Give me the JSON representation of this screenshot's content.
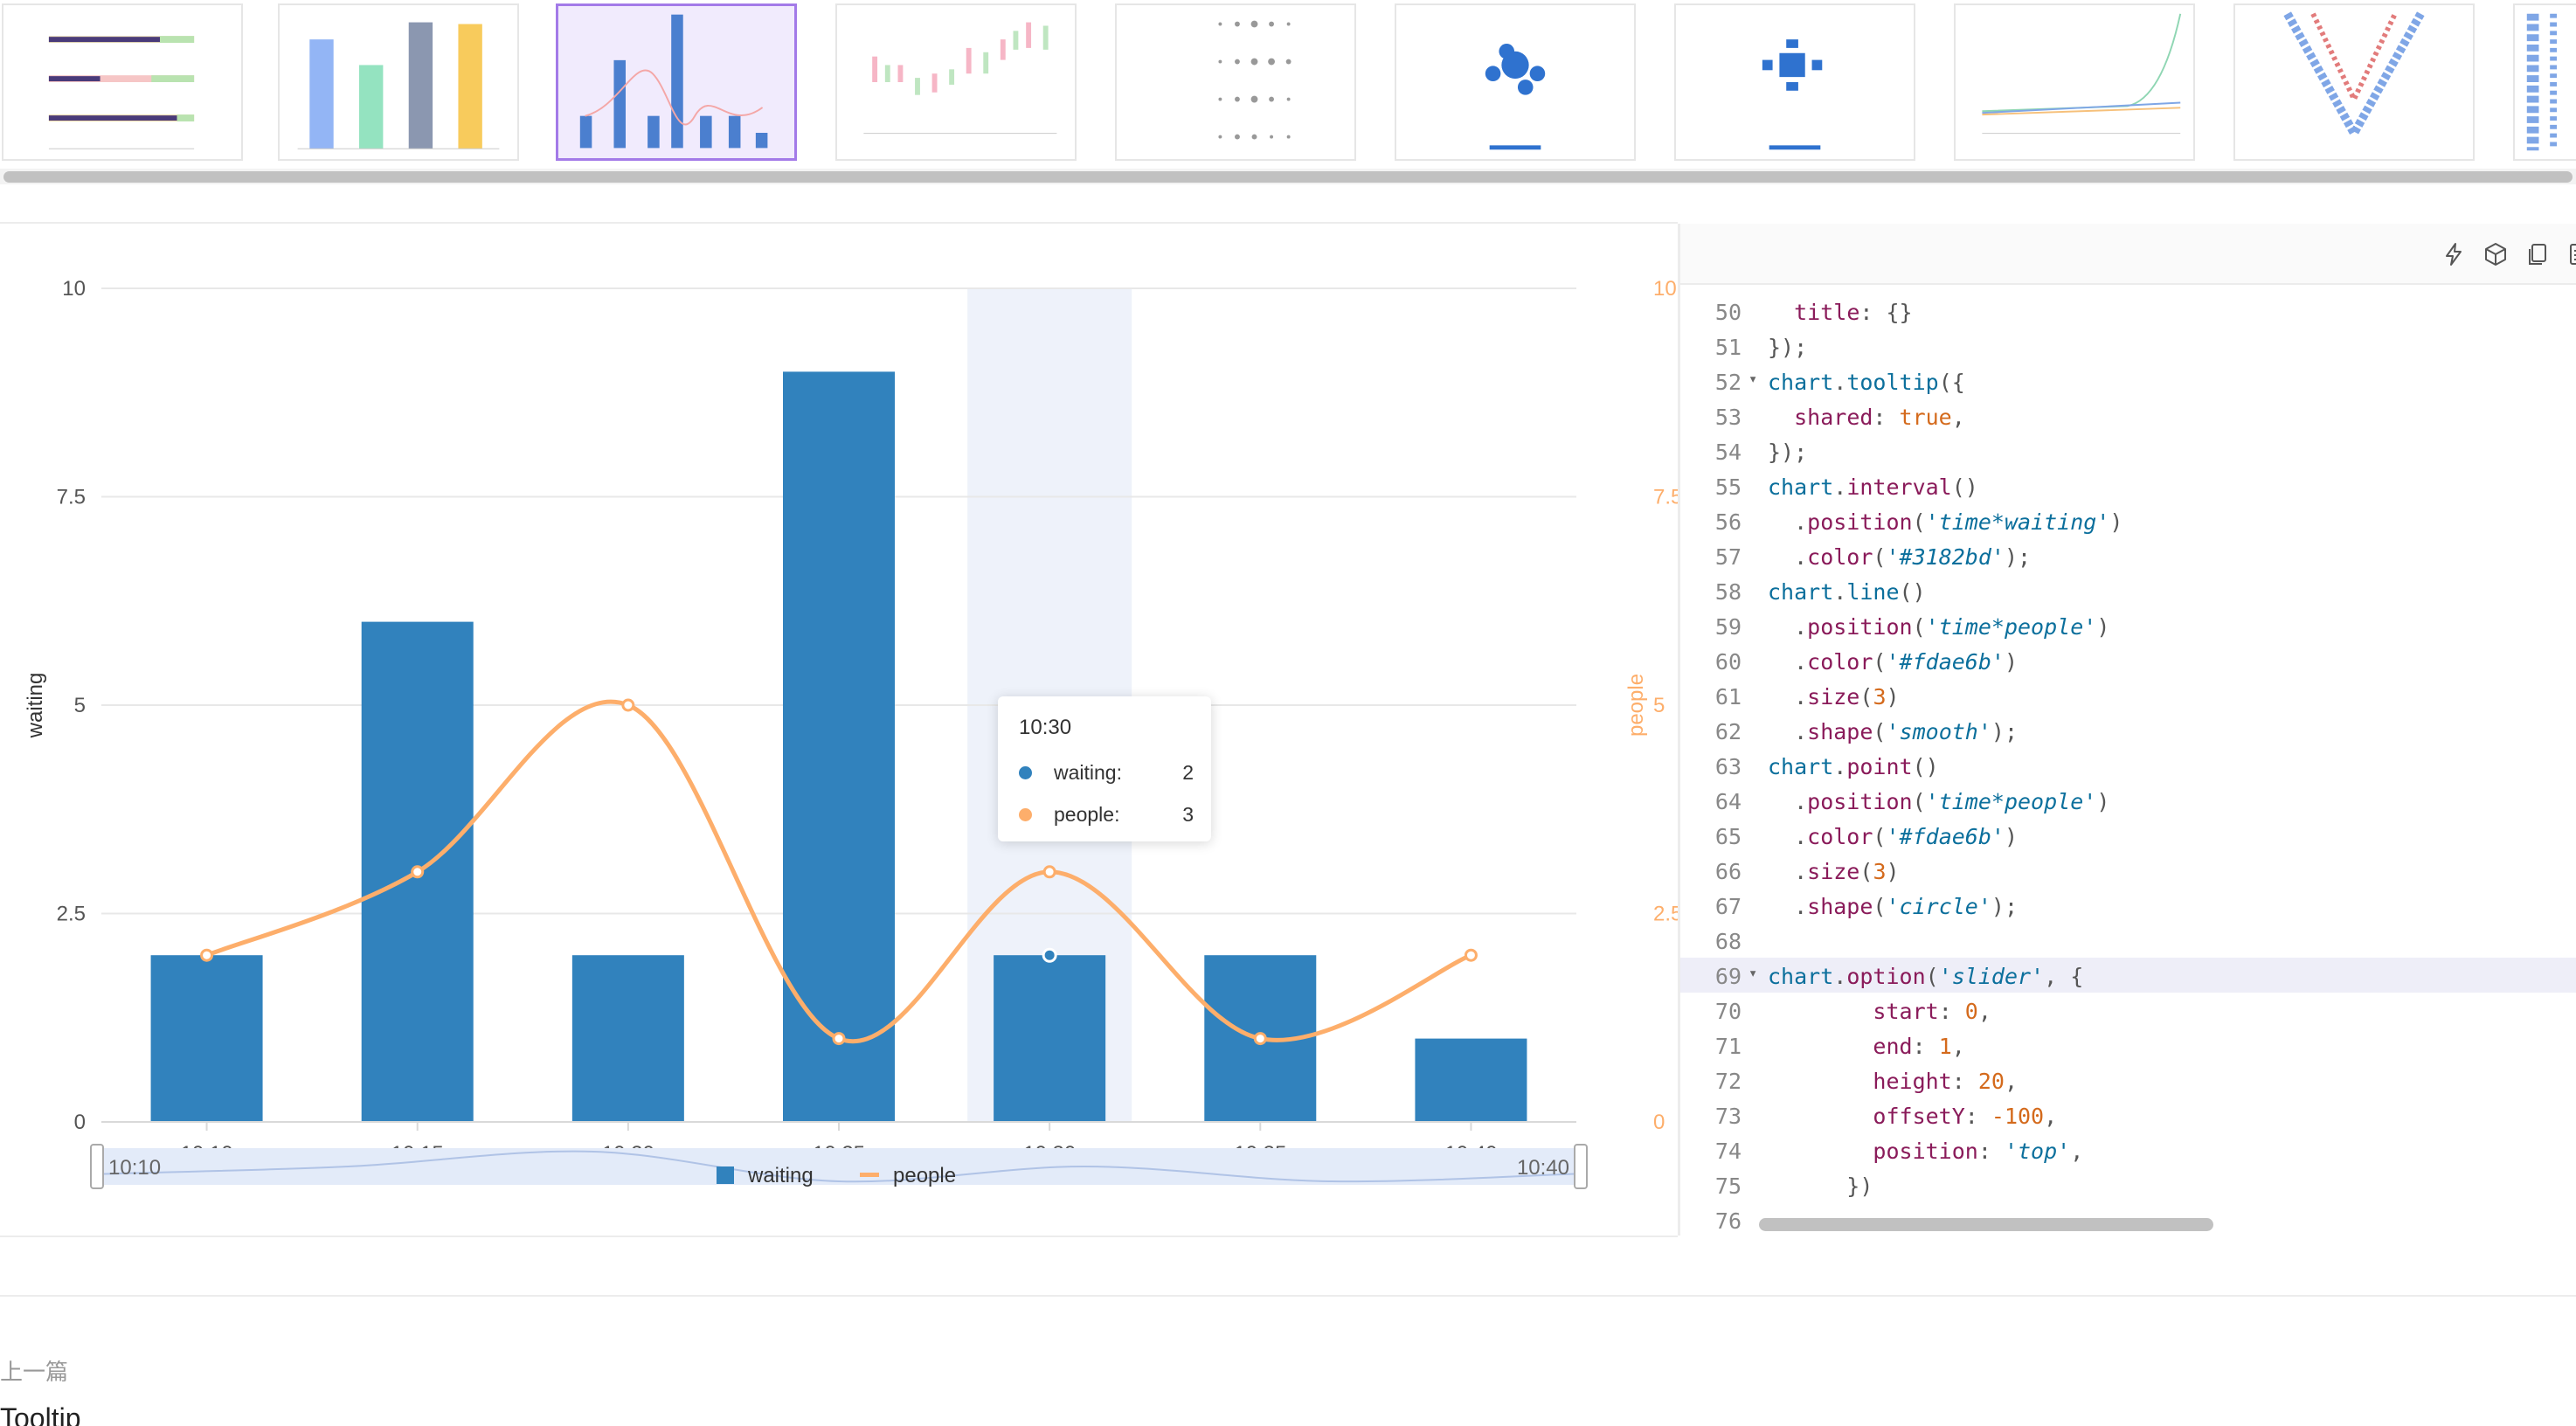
{
  "thumbnails": [
    {
      "name": "bullet-chart"
    },
    {
      "name": "bar-error-chart"
    },
    {
      "name": "dual-axes-chart",
      "active": true
    },
    {
      "name": "candlestick-chart"
    },
    {
      "name": "dot-matrix-chart"
    },
    {
      "name": "hex-bin-chart"
    },
    {
      "name": "rect-bin-chart"
    },
    {
      "name": "multi-line-chart"
    },
    {
      "name": "word-cloud-chart"
    },
    {
      "name": "word-cloud-chart-2"
    }
  ],
  "chart_data": {
    "type": "bar+line",
    "categories": [
      "10:10",
      "10:15",
      "10:20",
      "10:25",
      "10:30",
      "10:35",
      "10:40"
    ],
    "series": [
      {
        "name": "waiting",
        "type": "bar",
        "axis": "left",
        "values": [
          2,
          6,
          2,
          9,
          2,
          2,
          1
        ],
        "color": "#3182bd"
      },
      {
        "name": "people",
        "type": "line",
        "axis": "right",
        "values": [
          2,
          3,
          5,
          1,
          3,
          1,
          2
        ],
        "color": "#fdae6b"
      }
    ],
    "ylabel_left": "waiting",
    "ylabel_right": "people",
    "ylim": [
      0,
      10
    ],
    "y_ticks": [
      "0",
      "2.5",
      "5",
      "7.5",
      "10"
    ],
    "highlight_category": "10:30",
    "grid": true,
    "legend_position": "bottom",
    "slider": {
      "start_label": "10:10",
      "end_label": "10:40"
    }
  },
  "tooltip": {
    "title": "10:30",
    "rows": [
      {
        "name": "waiting:",
        "value": "2",
        "color": "#3182bd"
      },
      {
        "name": "people:",
        "value": "3",
        "color": "#fdae6b"
      }
    ]
  },
  "legend": {
    "waiting": "waiting",
    "people": "people"
  },
  "editor": {
    "toolbar_icons": [
      "lightning-icon",
      "cube-icon",
      "copy-icon",
      "document-icon"
    ],
    "highlight_line": 69,
    "lines": [
      {
        "n": "50",
        "fold": false,
        "html": "  <span class='k-prop'>title</span>: {}"
      },
      {
        "n": "51",
        "fold": false,
        "html": "});"
      },
      {
        "n": "52",
        "fold": true,
        "html": "<span class='k-obj'>chart</span>.<span class='k-obj'>tooltip</span>({"
      },
      {
        "n": "53",
        "fold": false,
        "html": "  <span class='k-prop'>shared</span>: <span class='k-bool'>true</span>,"
      },
      {
        "n": "54",
        "fold": false,
        "html": "});"
      },
      {
        "n": "55",
        "fold": false,
        "html": "<span class='k-obj'>chart</span>.<span class='k-prop'>interval</span>()"
      },
      {
        "n": "56",
        "fold": false,
        "html": "  .<span class='k-prop'>position</span>(<span class='k-str'>'time*waiting'</span>)"
      },
      {
        "n": "57",
        "fold": false,
        "html": "  .<span class='k-prop'>color</span>(<span class='k-str'>'#3182bd'</span>);"
      },
      {
        "n": "58",
        "fold": false,
        "html": "<span class='k-obj'>chart</span>.<span class='k-obj'>line</span>()"
      },
      {
        "n": "59",
        "fold": false,
        "html": "  .<span class='k-prop'>position</span>(<span class='k-str'>'time*people'</span>)"
      },
      {
        "n": "60",
        "fold": false,
        "html": "  .<span class='k-prop'>color</span>(<span class='k-str'>'#fdae6b'</span>)"
      },
      {
        "n": "61",
        "fold": false,
        "html": "  .<span class='k-prop'>size</span>(<span class='k-num'>3</span>)"
      },
      {
        "n": "62",
        "fold": false,
        "html": "  .<span class='k-prop'>shape</span>(<span class='k-str'>'smooth'</span>);"
      },
      {
        "n": "63",
        "fold": false,
        "html": "<span class='k-obj'>chart</span>.<span class='k-prop'>point</span>()"
      },
      {
        "n": "64",
        "fold": false,
        "html": "  .<span class='k-prop'>position</span>(<span class='k-str'>'time*people'</span>)"
      },
      {
        "n": "65",
        "fold": false,
        "html": "  .<span class='k-prop'>color</span>(<span class='k-str'>'#fdae6b'</span>)"
      },
      {
        "n": "66",
        "fold": false,
        "html": "  .<span class='k-prop'>size</span>(<span class='k-num'>3</span>)"
      },
      {
        "n": "67",
        "fold": false,
        "html": "  .<span class='k-prop'>shape</span>(<span class='k-str'>'circle'</span>);"
      },
      {
        "n": "68",
        "fold": false,
        "html": ""
      },
      {
        "n": "69",
        "fold": true,
        "html": "<span class='k-obj'>chart</span>.<span class='k-prop'>option</span>(<span class='k-str'>'slider'</span>, {"
      },
      {
        "n": "70",
        "fold": false,
        "html": "        <span class='k-prop'>start</span>: <span class='k-num'>0</span>,"
      },
      {
        "n": "71",
        "fold": false,
        "html": "        <span class='k-prop'>end</span>: <span class='k-num'>1</span>,"
      },
      {
        "n": "72",
        "fold": false,
        "html": "        <span class='k-prop'>height</span>: <span class='k-num'>20</span>,"
      },
      {
        "n": "73",
        "fold": false,
        "html": "        <span class='k-prop'>offsetY</span>: <span class='k-num'>-100</span>,"
      },
      {
        "n": "74",
        "fold": false,
        "html": "        <span class='k-prop'>position</span>: <span class='k-str'>'top'</span>,"
      },
      {
        "n": "75",
        "fold": false,
        "html": "      })"
      },
      {
        "n": "76",
        "fold": false,
        "html": ""
      }
    ]
  },
  "footer": {
    "prev_label": "上一篇",
    "prev_title": "Tooltip"
  }
}
